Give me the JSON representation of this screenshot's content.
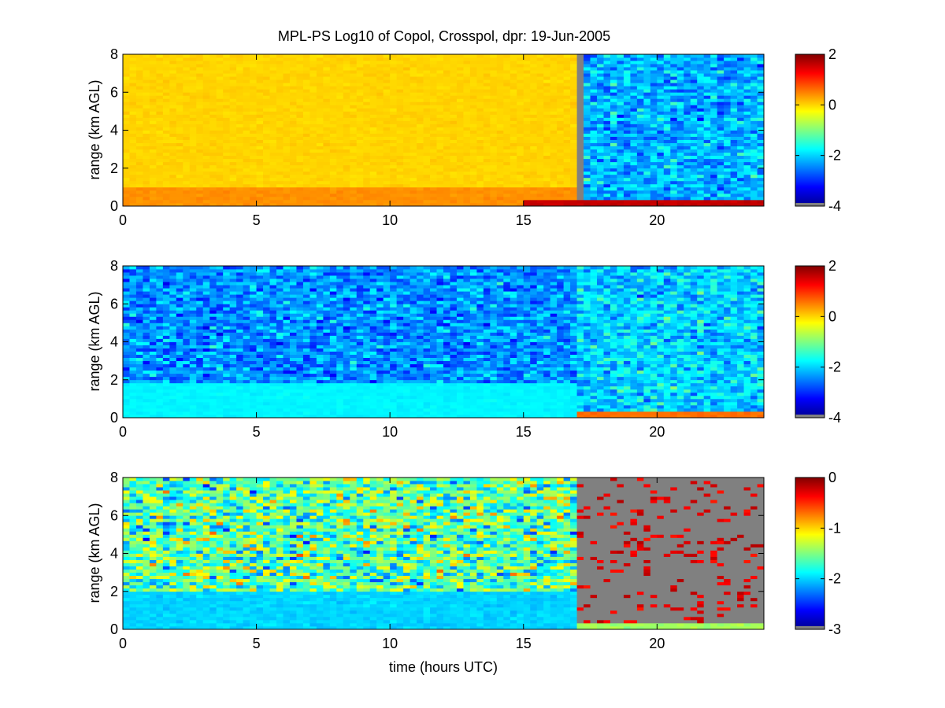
{
  "figure": {
    "title": "MPL-PS Log10 of Copol, Crosspol, dpr: 19-Jun-2005",
    "xlabel": "time (hours UTC)",
    "colors": {
      "nan": "#808080",
      "axis": "#000000",
      "background": "#ffffff"
    }
  },
  "chart_data": [
    {
      "type": "heatmap",
      "name": "copol",
      "ylabel": "range (km AGL)",
      "xlim": [
        0,
        24
      ],
      "ylim": [
        0,
        8
      ],
      "xticks": [
        "0",
        "5",
        "10",
        "15",
        "20"
      ],
      "yticks": [
        "0",
        "2",
        "4",
        "6",
        "8"
      ],
      "colormap": "jet",
      "clim": [
        -4,
        2
      ],
      "colorbar_ticks": [
        "-4",
        "-2",
        "0",
        "2"
      ],
      "regions": [
        {
          "time_start": 0,
          "time_end": 17.1,
          "range_low": 0,
          "range_high": 8,
          "log10_value": 0.0
        },
        {
          "time_start": 0,
          "time_end": 17.1,
          "range_low": 0,
          "range_high": 1.0,
          "log10_value": 0.4
        },
        {
          "time_start": 17.2,
          "time_end": 24,
          "range_low": 0.4,
          "range_high": 8,
          "log10_value": -2.2,
          "noisy": true
        },
        {
          "time_start": 15.0,
          "time_end": 24,
          "range_low": 0,
          "range_high": 0.3,
          "log10_value": 1.6
        }
      ]
    },
    {
      "type": "heatmap",
      "name": "crosspol",
      "ylabel": "range (km AGL)",
      "xlim": [
        0,
        24
      ],
      "ylim": [
        0,
        8
      ],
      "xticks": [
        "0",
        "5",
        "10",
        "15",
        "20"
      ],
      "yticks": [
        "0",
        "2",
        "4",
        "6",
        "8"
      ],
      "colormap": "jet",
      "clim": [
        -4,
        2
      ],
      "colorbar_ticks": [
        "-4",
        "-2",
        "0",
        "2"
      ],
      "regions": [
        {
          "time_start": 0,
          "time_end": 17.0,
          "range_low": 0,
          "range_high": 8,
          "log10_value": -2.4,
          "noisy": true
        },
        {
          "time_start": 0,
          "time_end": 17.0,
          "range_low": 0,
          "range_high": 1.8,
          "log10_value": -1.8
        },
        {
          "time_start": 17.1,
          "time_end": 24,
          "range_low": 0.4,
          "range_high": 8,
          "log10_value": -2.0,
          "noisy": true
        },
        {
          "time_start": 17.0,
          "time_end": 24,
          "range_low": 0,
          "range_high": 0.35,
          "log10_value": 0.6
        }
      ]
    },
    {
      "type": "heatmap",
      "name": "dpr",
      "xlabel": "time (hours UTC)",
      "ylabel": "range (km AGL)",
      "xlim": [
        0,
        24
      ],
      "ylim": [
        0,
        8
      ],
      "xticks": [
        "0",
        "5",
        "10",
        "15",
        "20"
      ],
      "yticks": [
        "0",
        "2",
        "4",
        "6",
        "8"
      ],
      "colormap": "jet",
      "clim": [
        -3,
        0
      ],
      "colorbar_ticks": [
        "-3",
        "-2",
        "-1",
        "0"
      ],
      "regions": [
        {
          "time_start": 0,
          "time_end": 17.0,
          "range_low": 0,
          "range_high": 8,
          "log10_value": -1.6,
          "noisy": true
        },
        {
          "time_start": 0,
          "time_end": 17.0,
          "range_low": 0,
          "range_high": 2.0,
          "log10_value": -2.0
        },
        {
          "time_start": 17.1,
          "time_end": 24,
          "range_low": 0.4,
          "range_high": 8,
          "log10_value": null,
          "note_color": "nan-gray",
          "sparse_red": true
        },
        {
          "time_start": 17.0,
          "time_end": 24,
          "range_low": 0,
          "range_high": 0.4,
          "log10_value": -1.4
        }
      ]
    }
  ]
}
